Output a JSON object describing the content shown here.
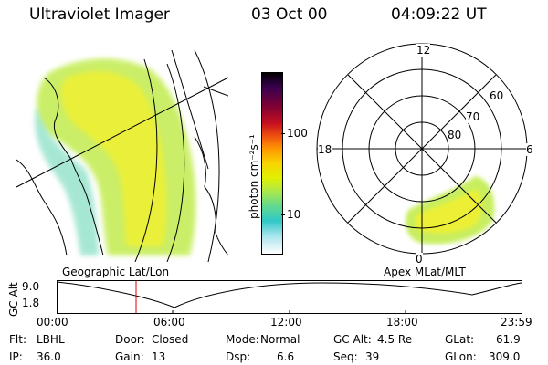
{
  "header": {
    "instrument": "Ultraviolet Imager",
    "date": "03 Oct 00",
    "time": "04:09:22 UT"
  },
  "colorbar": {
    "unit_label": "photon cm⁻²s⁻¹",
    "ticks": [
      "100",
      "10"
    ],
    "colors": [
      "#000000",
      "#3a0050",
      "#7a0036",
      "#c81020",
      "#f05010",
      "#ff9800",
      "#f8d400",
      "#e0f000",
      "#a8e850",
      "#60d890",
      "#30c8c8",
      "#a8e4ec",
      "#ffffff"
    ]
  },
  "geo_panel": {
    "caption": "Geographic Lat/Lon"
  },
  "polar_panel": {
    "caption": "Apex MLat/MLT",
    "mlt_labels": [
      "12",
      "18",
      "6",
      "0"
    ],
    "mlat_labels": [
      "60",
      "70",
      "80"
    ]
  },
  "timeline": {
    "ylabel": "GC Alt",
    "y_ticks": [
      "9.0",
      "1.8"
    ],
    "x_ticks": [
      "00:00",
      "06:00",
      "12:00",
      "18:00",
      "23:59"
    ],
    "current_fraction": 0.171
  },
  "status": {
    "flt_label": "Flt:",
    "flt_value": "LBHL",
    "ip_label": "IP:",
    "ip_value": "36.0",
    "door_label": "Door:",
    "door_value": "Closed",
    "gain_label": "Gain:",
    "gain_value": "13",
    "mode_label": "Mode:",
    "mode_value": "Normal",
    "dsp_label": "Dsp:",
    "dsp_value": "6.6",
    "gcalt_label": "GC Alt:",
    "gcalt_value": "4.5 Re",
    "seq_label": "Seq:",
    "seq_value": "39",
    "glat_label": "GLat:",
    "glat_value": "61.9",
    "glon_label": "GLon:",
    "glon_value": "309.0"
  }
}
